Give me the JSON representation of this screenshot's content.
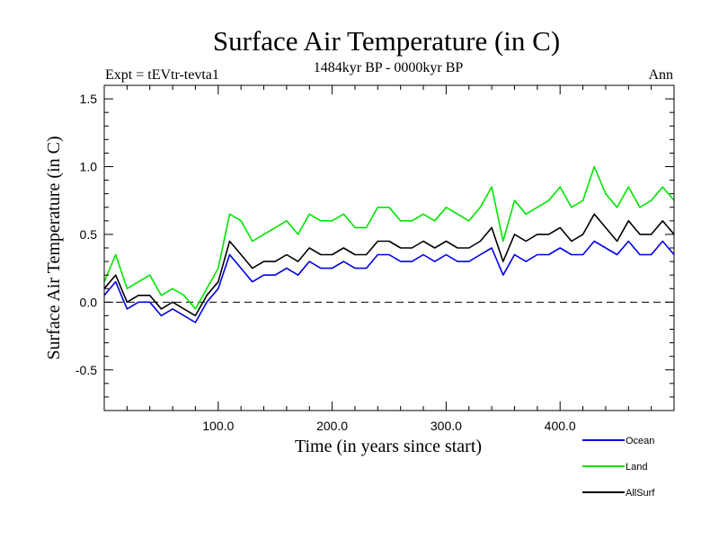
{
  "chart_data": {
    "type": "line",
    "title": "Surface Air Temperature (in C)",
    "subtitle": "1484kyr BP - 0000kyr BP",
    "experiment_label": "Expt = tEVtr-tevta1",
    "season_label": "Ann",
    "xlabel": "Time (in years since start)",
    "ylabel": "Surface Air Temperature (in C)",
    "xlim": [
      0,
      500
    ],
    "ylim": [
      -0.8,
      1.6
    ],
    "x_ticks": [
      {
        "value": 100,
        "label": "100.0"
      },
      {
        "value": 200,
        "label": "200.0"
      },
      {
        "value": 300,
        "label": "300.0"
      },
      {
        "value": 400,
        "label": "400.0"
      }
    ],
    "y_ticks": [
      {
        "value": -0.5,
        "label": "-0.5"
      },
      {
        "value": 0.0,
        "label": "0.0"
      },
      {
        "value": 0.5,
        "label": "0.5"
      },
      {
        "value": 1.0,
        "label": "1.0"
      },
      {
        "value": 1.5,
        "label": "1.5"
      }
    ],
    "reference_line": {
      "y": 0.0,
      "style": "dashed"
    },
    "legend_position": "bottom-right",
    "series": [
      {
        "name": "Land",
        "color": "#00e600",
        "x": [
          0,
          10,
          20,
          30,
          40,
          50,
          60,
          70,
          80,
          90,
          100,
          110,
          120,
          130,
          140,
          150,
          160,
          170,
          180,
          190,
          200,
          210,
          220,
          230,
          240,
          250,
          260,
          270,
          280,
          290,
          300,
          310,
          320,
          330,
          340,
          350,
          360,
          370,
          380,
          390,
          400,
          410,
          420,
          430,
          440,
          450,
          460,
          470,
          480,
          490,
          500
        ],
        "values": [
          0.15,
          0.35,
          0.1,
          0.15,
          0.2,
          0.05,
          0.1,
          0.05,
          -0.05,
          0.1,
          0.25,
          0.65,
          0.6,
          0.45,
          0.5,
          0.55,
          0.6,
          0.5,
          0.65,
          0.6,
          0.6,
          0.65,
          0.55,
          0.55,
          0.7,
          0.7,
          0.6,
          0.6,
          0.65,
          0.6,
          0.7,
          0.65,
          0.6,
          0.7,
          0.85,
          0.45,
          0.75,
          0.65,
          0.7,
          0.75,
          0.85,
          0.7,
          0.75,
          1.0,
          0.8,
          0.7,
          0.85,
          0.7,
          0.75,
          0.85,
          0.75
        ]
      },
      {
        "name": "AllSurf",
        "color": "#000000",
        "x": [
          0,
          10,
          20,
          30,
          40,
          50,
          60,
          70,
          80,
          90,
          100,
          110,
          120,
          130,
          140,
          150,
          160,
          170,
          180,
          190,
          200,
          210,
          220,
          230,
          240,
          250,
          260,
          270,
          280,
          290,
          300,
          310,
          320,
          330,
          340,
          350,
          360,
          370,
          380,
          390,
          400,
          410,
          420,
          430,
          440,
          450,
          460,
          470,
          480,
          490,
          500
        ],
        "values": [
          0.1,
          0.2,
          0.0,
          0.05,
          0.05,
          -0.05,
          0.0,
          -0.05,
          -0.1,
          0.05,
          0.15,
          0.45,
          0.35,
          0.25,
          0.3,
          0.3,
          0.35,
          0.3,
          0.4,
          0.35,
          0.35,
          0.4,
          0.35,
          0.35,
          0.45,
          0.45,
          0.4,
          0.4,
          0.45,
          0.4,
          0.45,
          0.4,
          0.4,
          0.45,
          0.55,
          0.3,
          0.5,
          0.45,
          0.5,
          0.5,
          0.55,
          0.45,
          0.5,
          0.65,
          0.55,
          0.45,
          0.6,
          0.5,
          0.5,
          0.6,
          0.5
        ]
      },
      {
        "name": "Ocean",
        "color": "#0000e6",
        "x": [
          0,
          10,
          20,
          30,
          40,
          50,
          60,
          70,
          80,
          90,
          100,
          110,
          120,
          130,
          140,
          150,
          160,
          170,
          180,
          190,
          200,
          210,
          220,
          230,
          240,
          250,
          260,
          270,
          280,
          290,
          300,
          310,
          320,
          330,
          340,
          350,
          360,
          370,
          380,
          390,
          400,
          410,
          420,
          430,
          440,
          450,
          460,
          470,
          480,
          490,
          500
        ],
        "values": [
          0.05,
          0.15,
          -0.05,
          0.0,
          0.0,
          -0.1,
          -0.05,
          -0.1,
          -0.15,
          0.0,
          0.1,
          0.35,
          0.25,
          0.15,
          0.2,
          0.2,
          0.25,
          0.2,
          0.3,
          0.25,
          0.25,
          0.3,
          0.25,
          0.25,
          0.35,
          0.35,
          0.3,
          0.3,
          0.35,
          0.3,
          0.35,
          0.3,
          0.3,
          0.35,
          0.4,
          0.2,
          0.35,
          0.3,
          0.35,
          0.35,
          0.4,
          0.35,
          0.35,
          0.45,
          0.4,
          0.35,
          0.45,
          0.35,
          0.35,
          0.45,
          0.35
        ]
      }
    ]
  }
}
